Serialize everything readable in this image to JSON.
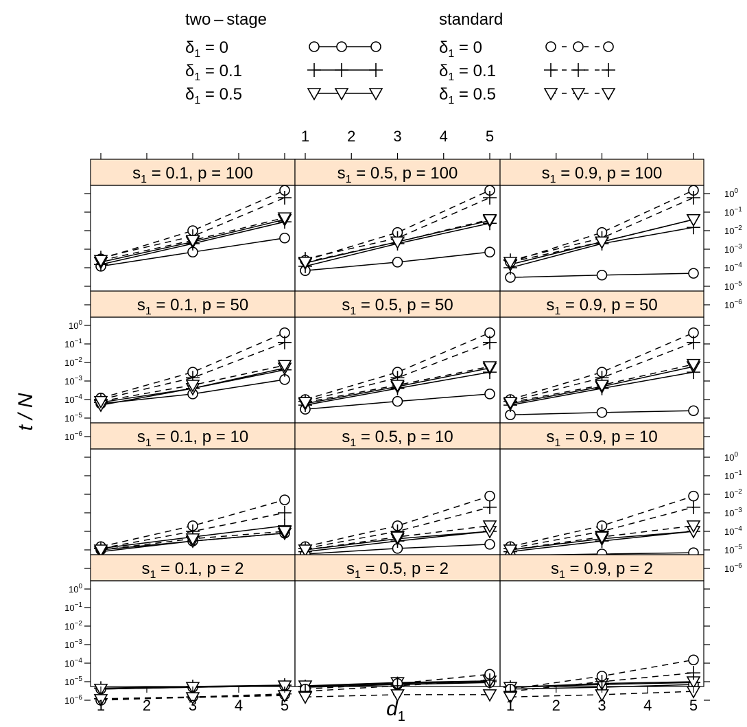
{
  "legend": {
    "groups": [
      {
        "title": "two – stage",
        "line_style": "solid",
        "entries": [
          {
            "label_sym": "δ",
            "label_sub": "1",
            "label_val": " = 0",
            "marker": "circle"
          },
          {
            "label_sym": "δ",
            "label_sub": "1",
            "label_val": " = 0.1",
            "marker": "plus"
          },
          {
            "label_sym": "δ",
            "label_sub": "1",
            "label_val": " = 0.5",
            "marker": "triangle"
          }
        ]
      },
      {
        "title": "standard",
        "line_style": "dashed",
        "entries": [
          {
            "label_sym": "δ",
            "label_sub": "1",
            "label_val": " = 0",
            "marker": "circle"
          },
          {
            "label_sym": "δ",
            "label_sub": "1",
            "label_val": " = 0.1",
            "marker": "plus"
          },
          {
            "label_sym": "δ",
            "label_sub": "1",
            "label_val": " = 0.5",
            "marker": "triangle"
          }
        ]
      }
    ]
  },
  "axes": {
    "xlabel_main": "d",
    "xlabel_sub": "1",
    "ylabel": "t / N",
    "x_ticks": [
      "1",
      "2",
      "3",
      "4",
      "5"
    ],
    "y_ticks": [
      {
        "base": "10",
        "exp": "0"
      },
      {
        "base": "10",
        "exp": "−1"
      },
      {
        "base": "10",
        "exp": "−2"
      },
      {
        "base": "10",
        "exp": "−3"
      },
      {
        "base": "10",
        "exp": "−4"
      },
      {
        "base": "10",
        "exp": "−5"
      },
      {
        "base": "10",
        "exp": "−6"
      }
    ]
  },
  "colors": {
    "strip_bg": "#FFE5CC",
    "line": "#000000",
    "background": "#FFFFFF"
  },
  "chart_data": {
    "type": "line",
    "layout": "trellis 3 columns x 4 rows",
    "y_scale": "log10",
    "xlim": [
      1,
      5
    ],
    "ylim": [
      1e-06,
      1
    ],
    "x": [
      1,
      3,
      5
    ],
    "panels": [
      {
        "strip_sub": "1",
        "strip_s": "0.1",
        "strip_p": "100",
        "series": [
          {
            "method": "two-stage",
            "delta1": "0",
            "values": [
              0.00012,
              0.0007,
              0.004
            ]
          },
          {
            "method": "two-stage",
            "delta1": "0.1",
            "values": [
              0.00015,
              0.002,
              0.03
            ]
          },
          {
            "method": "two-stage",
            "delta1": "0.5",
            "values": [
              0.0002,
              0.0025,
              0.04
            ]
          },
          {
            "method": "standard",
            "delta1": "0",
            "values": [
              0.0003,
              0.01,
              1.5
            ]
          },
          {
            "method": "standard",
            "delta1": "0.1",
            "values": [
              0.00035,
              0.005,
              0.6
            ]
          },
          {
            "method": "standard",
            "delta1": "0.5",
            "values": [
              0.00025,
              0.003,
              0.05
            ]
          }
        ]
      },
      {
        "strip_sub": "1",
        "strip_s": "0.5",
        "strip_p": "100",
        "series": [
          {
            "method": "two-stage",
            "delta1": "0",
            "values": [
              7e-05,
              0.0002,
              0.0007
            ]
          },
          {
            "method": "two-stage",
            "delta1": "0.1",
            "values": [
              0.00012,
              0.002,
              0.025
            ]
          },
          {
            "method": "two-stage",
            "delta1": "0.5",
            "values": [
              0.00018,
              0.0025,
              0.035
            ]
          },
          {
            "method": "standard",
            "delta1": "0",
            "values": [
              0.00025,
              0.008,
              1.5
            ]
          },
          {
            "method": "standard",
            "delta1": "0.1",
            "values": [
              0.0003,
              0.004,
              0.6
            ]
          },
          {
            "method": "standard",
            "delta1": "0.5",
            "values": [
              0.0002,
              0.0025,
              0.04
            ]
          }
        ]
      },
      {
        "strip_sub": "1",
        "strip_s": "0.9",
        "strip_p": "100",
        "series": [
          {
            "method": "two-stage",
            "delta1": "0",
            "values": [
              3e-05,
              4e-05,
              5e-05
            ]
          },
          {
            "method": "two-stage",
            "delta1": "0.1",
            "values": [
              0.0001,
              0.002,
              0.015
            ]
          },
          {
            "method": "two-stage",
            "delta1": "0.5",
            "values": [
              0.00015,
              0.0025,
              0.04
            ]
          },
          {
            "method": "standard",
            "delta1": "0",
            "values": [
              0.0002,
              0.008,
              1.5
            ]
          },
          {
            "method": "standard",
            "delta1": "0.1",
            "values": [
              0.00025,
              0.004,
              0.6
            ]
          },
          {
            "method": "standard",
            "delta1": "0.5",
            "values": [
              0.0002,
              0.0025,
              0.04
            ]
          }
        ]
      },
      {
        "strip_sub": "1",
        "strip_s": "0.1",
        "strip_p": "50",
        "series": [
          {
            "method": "two-stage",
            "delta1": "0",
            "values": [
              6e-05,
              0.0002,
              0.0012
            ]
          },
          {
            "method": "two-stage",
            "delta1": "0.1",
            "values": [
              7e-05,
              0.0004,
              0.004
            ]
          },
          {
            "method": "two-stage",
            "delta1": "0.5",
            "values": [
              5e-05,
              0.0004,
              0.005
            ]
          },
          {
            "method": "standard",
            "delta1": "0",
            "values": [
              0.00012,
              0.003,
              0.4
            ]
          },
          {
            "method": "standard",
            "delta1": "0.1",
            "values": [
              0.0001,
              0.0015,
              0.12
            ]
          },
          {
            "method": "standard",
            "delta1": "0.5",
            "values": [
              8e-05,
              0.0006,
              0.007
            ]
          }
        ]
      },
      {
        "strip_sub": "1",
        "strip_s": "0.5",
        "strip_p": "50",
        "series": [
          {
            "method": "two-stage",
            "delta1": "0",
            "values": [
              3e-05,
              8e-05,
              0.0002
            ]
          },
          {
            "method": "two-stage",
            "delta1": "0.1",
            "values": [
              5e-05,
              0.0004,
              0.003
            ]
          },
          {
            "method": "two-stage",
            "delta1": "0.5",
            "values": [
              6e-05,
              0.0005,
              0.005
            ]
          },
          {
            "method": "standard",
            "delta1": "0",
            "values": [
              0.0001,
              0.003,
              0.4
            ]
          },
          {
            "method": "standard",
            "delta1": "0.1",
            "values": [
              8e-05,
              0.0015,
              0.12
            ]
          },
          {
            "method": "standard",
            "delta1": "0.5",
            "values": [
              7e-05,
              0.0006,
              0.006
            ]
          }
        ]
      },
      {
        "strip_sub": "1",
        "strip_s": "0.9",
        "strip_p": "50",
        "series": [
          {
            "method": "two-stage",
            "delta1": "0",
            "values": [
              1.5e-05,
              2e-05,
              2.5e-05
            ]
          },
          {
            "method": "two-stage",
            "delta1": "0.1",
            "values": [
              5e-05,
              0.0004,
              0.003
            ]
          },
          {
            "method": "two-stage",
            "delta1": "0.5",
            "values": [
              6e-05,
              0.0005,
              0.006
            ]
          },
          {
            "method": "standard",
            "delta1": "0",
            "values": [
              0.0001,
              0.003,
              0.4
            ]
          },
          {
            "method": "standard",
            "delta1": "0.1",
            "values": [
              8e-05,
              0.0015,
              0.12
            ]
          },
          {
            "method": "standard",
            "delta1": "0.5",
            "values": [
              7e-05,
              0.0006,
              0.008
            ]
          }
        ]
      },
      {
        "strip_sub": "1",
        "strip_s": "0.1",
        "strip_p": "10",
        "series": [
          {
            "method": "two-stage",
            "delta1": "0",
            "values": [
              1e-05,
              3e-05,
              8e-05
            ]
          },
          {
            "method": "two-stage",
            "delta1": "0.1",
            "values": [
              1.2e-05,
              5e-05,
              0.0002
            ]
          },
          {
            "method": "two-stage",
            "delta1": "0.5",
            "values": [
              8e-06,
              3e-05,
              8e-05
            ]
          },
          {
            "method": "standard",
            "delta1": "0",
            "values": [
              1.5e-05,
              0.0002,
              0.005
            ]
          },
          {
            "method": "standard",
            "delta1": "0.1",
            "values": [
              1.2e-05,
              0.0001,
              0.001
            ]
          },
          {
            "method": "standard",
            "delta1": "0.5",
            "values": [
              1e-05,
              4e-05,
              0.0001
            ]
          }
        ]
      },
      {
        "strip_sub": "1",
        "strip_s": "0.5",
        "strip_p": "10",
        "series": [
          {
            "method": "two-stage",
            "delta1": "0",
            "values": [
              6e-06,
              1.2e-05,
              2e-05
            ]
          },
          {
            "method": "two-stage",
            "delta1": "0.1",
            "values": [
              8e-06,
              3e-05,
              0.0001
            ]
          },
          {
            "method": "two-stage",
            "delta1": "0.5",
            "values": [
              1e-05,
              4e-05,
              0.0001
            ]
          },
          {
            "method": "standard",
            "delta1": "0",
            "values": [
              1.5e-05,
              0.0002,
              0.008
            ]
          },
          {
            "method": "standard",
            "delta1": "0.1",
            "values": [
              1.2e-05,
              0.0001,
              0.002
            ]
          },
          {
            "method": "standard",
            "delta1": "0.5",
            "values": [
              1e-05,
              5e-05,
              0.0002
            ]
          }
        ]
      },
      {
        "strip_sub": "1",
        "strip_s": "0.9",
        "strip_p": "10",
        "series": [
          {
            "method": "two-stage",
            "delta1": "0",
            "values": [
              5e-06,
              6e-06,
              7e-06
            ]
          },
          {
            "method": "two-stage",
            "delta1": "0.1",
            "values": [
              8e-06,
              3e-05,
              0.0001
            ]
          },
          {
            "method": "two-stage",
            "delta1": "0.5",
            "values": [
              1e-05,
              4e-05,
              0.0001
            ]
          },
          {
            "method": "standard",
            "delta1": "0",
            "values": [
              1.5e-05,
              0.0002,
              0.008
            ]
          },
          {
            "method": "standard",
            "delta1": "0.1",
            "values": [
              1.2e-05,
              0.0001,
              0.002
            ]
          },
          {
            "method": "standard",
            "delta1": "0.5",
            "values": [
              1e-05,
              5e-05,
              0.0002
            ]
          }
        ]
      },
      {
        "strip_sub": "1",
        "strip_s": "0.1",
        "strip_p": "2",
        "series": [
          {
            "method": "two-stage",
            "delta1": "0",
            "values": [
              4e-06,
              5e-06,
              6e-06
            ]
          },
          {
            "method": "two-stage",
            "delta1": "0.1",
            "values": [
              4.5e-06,
              5.5e-06,
              6.5e-06
            ]
          },
          {
            "method": "two-stage",
            "delta1": "0.5",
            "values": [
              4e-06,
              5e-06,
              6e-06
            ]
          },
          {
            "method": "standard",
            "delta1": "0",
            "values": [
              1e-06,
              1.5e-06,
              2e-06
            ]
          },
          {
            "method": "standard",
            "delta1": "0.1",
            "values": [
              1.2e-06,
              1.5e-06,
              2.2e-06
            ]
          },
          {
            "method": "standard",
            "delta1": "0.5",
            "values": [
              1.1e-06,
              1.4e-06,
              1.8e-06
            ]
          }
        ]
      },
      {
        "strip_sub": "1",
        "strip_s": "0.5",
        "strip_p": "2",
        "series": [
          {
            "method": "two-stage",
            "delta1": "0",
            "values": [
              5e-06,
              7e-06,
              9e-06
            ]
          },
          {
            "method": "two-stage",
            "delta1": "0.1",
            "values": [
              5.5e-06,
              8e-06,
              1e-05
            ]
          },
          {
            "method": "two-stage",
            "delta1": "0.5",
            "values": [
              6e-06,
              9e-06,
              1.1e-05
            ]
          },
          {
            "method": "standard",
            "delta1": "0",
            "values": [
              4e-06,
              8e-06,
              2.5e-05
            ]
          },
          {
            "method": "standard",
            "delta1": "0.1",
            "values": [
              3e-06,
              6e-06,
              1.2e-05
            ]
          },
          {
            "method": "standard",
            "delta1": "0.5",
            "values": [
              1.5e-06,
              2e-06,
              2e-06
            ]
          }
        ]
      },
      {
        "strip_sub": "1",
        "strip_s": "0.9",
        "strip_p": "2",
        "series": [
          {
            "method": "two-stage",
            "delta1": "0",
            "values": [
              4e-06,
              5e-06,
              7e-06
            ]
          },
          {
            "method": "two-stage",
            "delta1": "0.1",
            "values": [
              5e-06,
              7e-06,
              9e-06
            ]
          },
          {
            "method": "two-stage",
            "delta1": "0.5",
            "values": [
              5e-06,
              8e-06,
              1e-05
            ]
          },
          {
            "method": "standard",
            "delta1": "0",
            "values": [
              4e-06,
              2e-05,
              0.00015
            ]
          },
          {
            "method": "standard",
            "delta1": "0.1",
            "values": [
              3e-06,
              1e-05,
              3e-05
            ]
          },
          {
            "method": "standard",
            "delta1": "0.5",
            "values": [
              1.5e-06,
              2e-06,
              3e-06
            ]
          }
        ]
      }
    ]
  }
}
